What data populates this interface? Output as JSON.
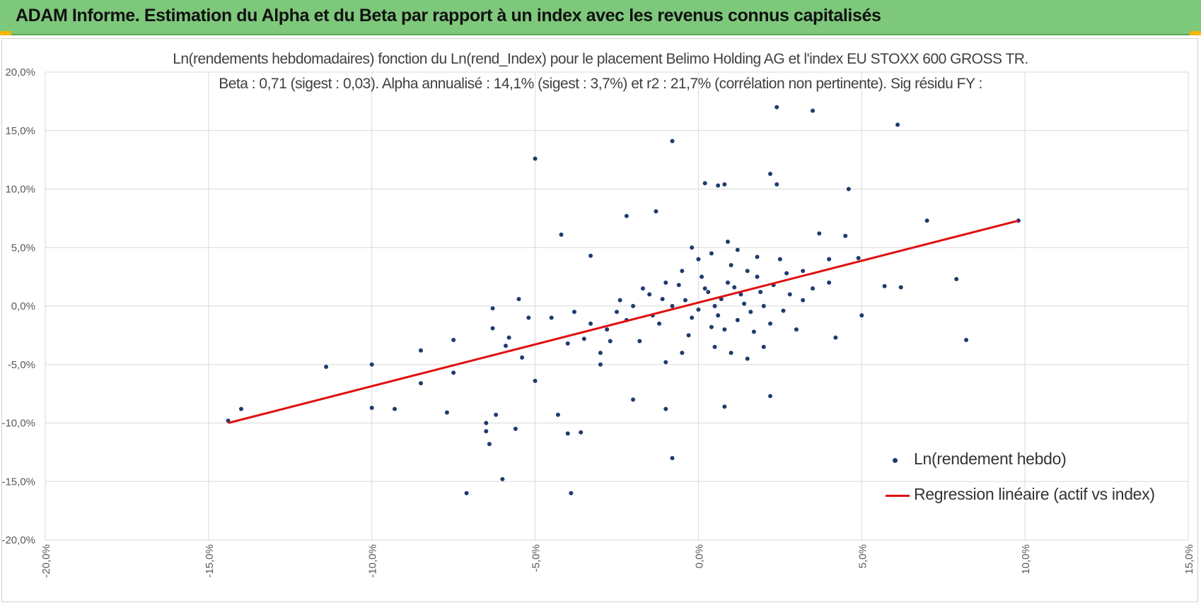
{
  "banner": {
    "title": "ADAM Informe. Estimation du Alpha et du Beta par rapport à un index avec les revenus connus capitalisés",
    "color": "#7ec87c"
  },
  "chart_data": {
    "type": "scatter",
    "title_line1": "Ln(rendements hebdomadaires) fonction du Ln(rend_Index) pour le placement Belimo Holding AG et l'index EU STOXX 600 GROSS TR.",
    "title_line2": "Beta : 0,71 (sigest : 0,03).  Alpha annualisé : 14,1% (sigest : 3,7%) et r2 : 21,7% (corrélation non pertinente). Sig résidu FY :",
    "xlim": [
      -0.2,
      0.15
    ],
    "ylim": [
      -0.2,
      0.2
    ],
    "x_ticks": [
      -0.2,
      -0.15,
      -0.1,
      -0.05,
      0.0,
      0.05,
      0.1,
      0.15
    ],
    "y_ticks": [
      -0.2,
      -0.15,
      -0.1,
      -0.05,
      0.0,
      0.05,
      0.1,
      0.15,
      0.2
    ],
    "x_tick_labels": [
      "-20,0%",
      "-15,0%",
      "-10,0%",
      "-5,0%",
      "0,0%",
      "5,0%",
      "10,0%",
      "15,0%"
    ],
    "y_tick_labels": [
      "-20,0%",
      "-15,0%",
      "-10,0%",
      "-5,0%",
      "0,0%",
      "5,0%",
      "10,0%",
      "15,0%",
      "20,0%"
    ],
    "grid": true,
    "legend_position": "bottom-right",
    "series": [
      {
        "name": "Ln(rendement hebdo)",
        "kind": "scatter",
        "color": "#1f3b6e",
        "points": [
          [
            -0.144,
            -0.098
          ],
          [
            -0.14,
            -0.088
          ],
          [
            -0.114,
            -0.052
          ],
          [
            -0.1,
            -0.05
          ],
          [
            -0.1,
            -0.087
          ],
          [
            -0.093,
            -0.088
          ],
          [
            -0.085,
            -0.038
          ],
          [
            -0.085,
            -0.066
          ],
          [
            -0.077,
            -0.091
          ],
          [
            -0.075,
            -0.029
          ],
          [
            -0.075,
            -0.057
          ],
          [
            -0.065,
            -0.1
          ],
          [
            -0.065,
            -0.107
          ],
          [
            -0.064,
            -0.118
          ],
          [
            -0.063,
            -0.002
          ],
          [
            -0.063,
            -0.019
          ],
          [
            -0.06,
            -0.148
          ],
          [
            -0.062,
            -0.093
          ],
          [
            -0.059,
            -0.034
          ],
          [
            -0.058,
            -0.027
          ],
          [
            -0.056,
            -0.105
          ],
          [
            -0.055,
            0.006
          ],
          [
            -0.054,
            -0.044
          ],
          [
            -0.052,
            -0.01
          ],
          [
            -0.05,
            0.126
          ],
          [
            -0.05,
            -0.064
          ],
          [
            -0.042,
            0.061
          ],
          [
            -0.043,
            -0.093
          ],
          [
            -0.04,
            -0.109
          ],
          [
            -0.039,
            -0.16
          ],
          [
            -0.036,
            -0.108
          ],
          [
            -0.033,
            0.043
          ],
          [
            -0.03,
            -0.05
          ],
          [
            -0.022,
            0.077
          ],
          [
            -0.013,
            0.081
          ],
          [
            -0.008,
            0.141
          ],
          [
            -0.008,
            -0.13
          ],
          [
            -0.02,
            -0.08
          ],
          [
            -0.01,
            -0.088
          ],
          [
            0.008,
            -0.086
          ],
          [
            -0.071,
            -0.16
          ],
          [
            -0.045,
            -0.01
          ],
          [
            0.024,
            0.17
          ],
          [
            0.035,
            0.167
          ],
          [
            0.061,
            0.155
          ],
          [
            0.07,
            0.073
          ],
          [
            0.098,
            0.073
          ],
          [
            0.079,
            0.023
          ],
          [
            0.082,
            -0.029
          ],
          [
            0.062,
            0.016
          ],
          [
            0.057,
            0.017
          ],
          [
            0.046,
            0.1
          ],
          [
            0.022,
            0.113
          ],
          [
            0.024,
            0.104
          ],
          [
            0.002,
            0.105
          ],
          [
            0.006,
            0.103
          ],
          [
            0.008,
            0.104
          ],
          [
            0.049,
            0.041
          ],
          [
            0.05,
            -0.008
          ],
          [
            0.042,
            -0.027
          ],
          [
            0.022,
            -0.077
          ],
          [
            0.037,
            0.062
          ],
          [
            0.045,
            0.06
          ],
          [
            0.04,
            0.04
          ],
          [
            0.04,
            0.02
          ],
          [
            0.032,
            0.03
          ],
          [
            -0.03,
            -0.04
          ],
          [
            -0.028,
            -0.02
          ],
          [
            -0.025,
            -0.005
          ],
          [
            -0.02,
            0.0
          ],
          [
            -0.018,
            -0.03
          ],
          [
            -0.015,
            0.01
          ],
          [
            -0.012,
            -0.015
          ],
          [
            -0.01,
            0.02
          ],
          [
            -0.005,
            0.03
          ],
          [
            -0.002,
            -0.01
          ],
          [
            0.002,
            0.015
          ],
          [
            0.005,
            0.0
          ],
          [
            0.008,
            -0.02
          ],
          [
            0.01,
            0.035
          ],
          [
            0.013,
            0.01
          ],
          [
            0.016,
            -0.005
          ],
          [
            0.018,
            0.025
          ],
          [
            0.02,
            0.0
          ],
          [
            0.022,
            -0.015
          ],
          [
            0.025,
            0.04
          ],
          [
            0.028,
            0.01
          ],
          [
            0.03,
            -0.02
          ],
          [
            0.032,
            0.005
          ],
          [
            0.035,
            0.015
          ],
          [
            -0.004,
            0.005
          ],
          [
            0.0,
            -0.003
          ],
          [
            0.003,
            0.012
          ],
          [
            0.006,
            -0.008
          ],
          [
            0.009,
            0.02
          ],
          [
            0.012,
            -0.012
          ],
          [
            -0.008,
            0.0
          ],
          [
            -0.006,
            0.018
          ],
          [
            0.001,
            0.025
          ],
          [
            0.004,
            -0.018
          ],
          [
            0.007,
            0.006
          ],
          [
            0.011,
            0.016
          ],
          [
            0.014,
            0.002
          ],
          [
            0.017,
            -0.022
          ],
          [
            -0.003,
            -0.025
          ],
          [
            -0.011,
            0.006
          ],
          [
            -0.014,
            -0.008
          ],
          [
            0.015,
            0.03
          ],
          [
            0.019,
            0.012
          ],
          [
            0.023,
            0.018
          ],
          [
            0.026,
            -0.004
          ],
          [
            0.027,
            0.028
          ],
          [
            -0.017,
            0.015
          ],
          [
            -0.022,
            -0.012
          ],
          [
            -0.024,
            0.005
          ],
          [
            -0.027,
            -0.03
          ],
          [
            -0.033,
            -0.015
          ],
          [
            -0.035,
            -0.028
          ],
          [
            -0.038,
            -0.005
          ],
          [
            -0.04,
            -0.032
          ],
          [
            0.0,
            0.04
          ],
          [
            0.004,
            0.045
          ],
          [
            -0.002,
            0.05
          ],
          [
            0.009,
            0.055
          ],
          [
            0.012,
            0.048
          ],
          [
            0.018,
            0.042
          ],
          [
            0.005,
            -0.035
          ],
          [
            0.01,
            -0.04
          ],
          [
            -0.005,
            -0.04
          ],
          [
            0.02,
            -0.035
          ],
          [
            -0.01,
            -0.048
          ],
          [
            0.015,
            -0.045
          ]
        ]
      },
      {
        "name": "Regression linéaire (actif vs index)",
        "kind": "line",
        "color": "#e01010",
        "points": [
          [
            -0.144,
            -0.1
          ],
          [
            0.098,
            0.073
          ]
        ]
      }
    ]
  }
}
